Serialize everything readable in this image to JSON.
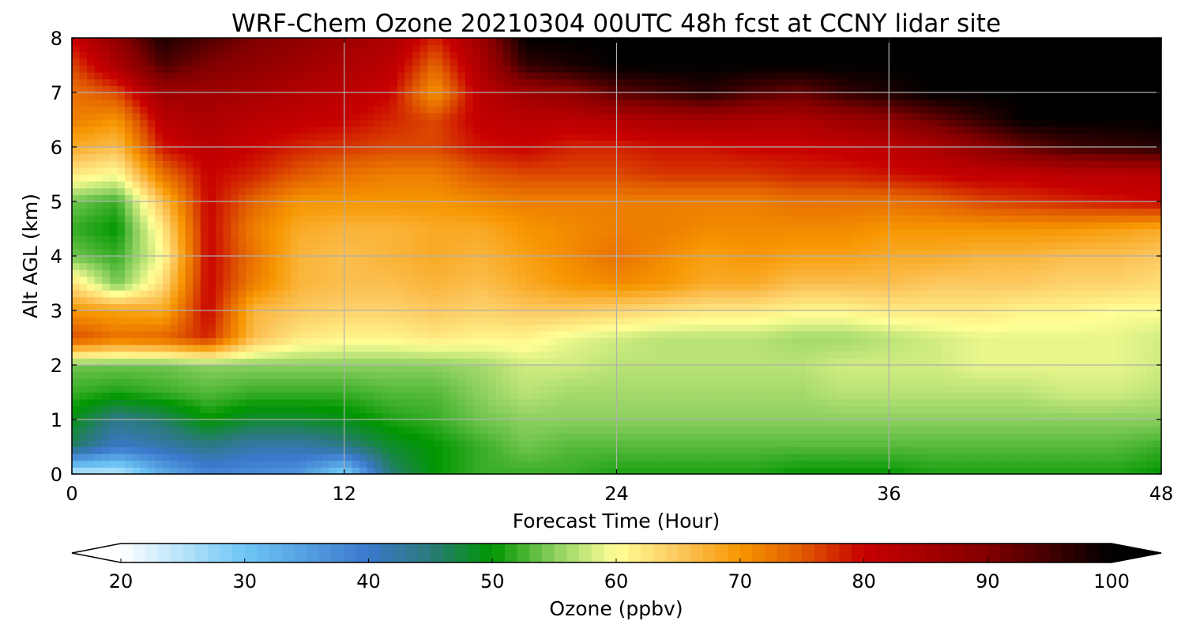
{
  "chart_data": {
    "type": "heatmap",
    "title": "WRF-Chem Ozone  20210304 00UTC 48h fcst at CCNY lidar site",
    "xlabel": "Forecast Time (Hour)",
    "ylabel": "Alt AGL (km)",
    "xlim": [
      0,
      48
    ],
    "ylim": [
      0,
      8
    ],
    "xticks": [
      0,
      12,
      24,
      36,
      48
    ],
    "yticks": [
      0,
      1,
      2,
      3,
      4,
      5,
      6,
      7,
      8
    ],
    "grid": true,
    "colorbar": {
      "label": "Ozone  (ppbv)",
      "range": [
        20,
        100
      ],
      "ticks": [
        20,
        30,
        40,
        50,
        60,
        70,
        80,
        90,
        100
      ],
      "extend": "both",
      "stops": [
        {
          "v": 20,
          "color": "#ffffff"
        },
        {
          "v": 30,
          "color": "#6ec6f5"
        },
        {
          "v": 40,
          "color": "#3a78cc"
        },
        {
          "v": 45,
          "color": "#2a7a7a"
        },
        {
          "v": 50,
          "color": "#009600"
        },
        {
          "v": 55,
          "color": "#8cd060"
        },
        {
          "v": 60,
          "color": "#ffff96"
        },
        {
          "v": 65,
          "color": "#fcc860"
        },
        {
          "v": 70,
          "color": "#f79600"
        },
        {
          "v": 75,
          "color": "#e05a00"
        },
        {
          "v": 80,
          "color": "#c80000"
        },
        {
          "v": 90,
          "color": "#820000"
        },
        {
          "v": 100,
          "color": "#000000"
        }
      ]
    },
    "times": [
      0,
      2,
      4,
      6,
      8,
      10,
      12,
      14,
      16,
      18,
      20,
      22,
      24,
      26,
      28,
      30,
      32,
      34,
      36,
      38,
      40,
      42,
      44,
      46,
      48
    ],
    "altitudes": [
      0,
      0.5,
      1,
      1.5,
      2,
      2.5,
      3,
      3.5,
      4,
      4.5,
      5,
      5.5,
      6,
      6.5,
      7,
      7.5,
      8
    ],
    "ozone": [
      [
        24,
        24,
        33,
        38,
        37,
        36,
        28,
        45,
        50,
        52,
        52,
        52,
        51,
        51,
        51,
        51,
        50,
        50,
        50,
        51,
        51,
        51,
        51,
        51,
        50
      ],
      [
        46,
        40,
        42,
        44,
        42,
        42,
        44,
        48,
        50,
        52,
        54,
        53,
        53,
        53,
        53,
        53,
        53,
        53,
        53,
        53,
        53,
        53,
        53,
        53,
        52
      ],
      [
        49,
        44,
        46,
        50,
        48,
        48,
        49,
        51,
        52,
        54,
        55,
        55,
        55,
        55,
        55,
        55,
        55,
        55,
        55,
        55,
        55,
        55,
        55,
        55,
        55
      ],
      [
        52,
        51,
        52,
        53,
        52,
        52,
        52,
        53,
        53,
        55,
        57,
        56,
        56,
        56,
        56,
        56,
        56,
        57,
        57,
        57,
        57,
        57,
        58,
        58,
        57
      ],
      [
        54,
        54,
        54,
        55,
        55,
        55,
        55,
        55,
        55,
        56,
        58,
        58,
        57,
        57,
        57,
        57,
        57,
        58,
        58,
        58,
        59,
        59,
        59,
        59,
        58
      ],
      [
        76,
        73,
        74,
        78,
        66,
        62,
        61,
        61,
        62,
        61,
        61,
        59,
        58,
        57,
        57,
        57,
        56,
        56,
        57,
        58,
        59,
        59,
        59,
        59,
        58
      ],
      [
        70,
        69,
        68,
        80,
        67,
        65,
        64,
        64,
        65,
        64,
        65,
        65,
        64,
        63,
        62,
        62,
        61,
        61,
        62,
        62,
        62,
        61,
        61,
        60,
        60
      ],
      [
        63,
        54,
        63,
        80,
        72,
        67,
        66,
        66,
        67,
        66,
        68,
        70,
        71,
        70,
        68,
        68,
        66,
        66,
        66,
        65,
        65,
        65,
        64,
        64,
        63
      ],
      [
        54,
        52,
        60,
        80,
        73,
        67,
        66,
        67,
        68,
        67,
        69,
        71,
        73,
        71,
        69,
        70,
        69,
        69,
        68,
        68,
        67,
        67,
        66,
        66,
        65
      ],
      [
        52,
        50,
        62,
        80,
        72,
        68,
        67,
        67,
        68,
        68,
        70,
        71,
        72,
        72,
        71,
        71,
        71,
        71,
        70,
        70,
        70,
        70,
        70,
        69,
        68
      ],
      [
        54,
        52,
        66,
        80,
        74,
        70,
        70,
        70,
        70,
        71,
        72,
        72,
        72,
        72,
        72,
        72,
        73,
        73,
        73,
        74,
        76,
        77,
        78,
        79,
        80
      ],
      [
        62,
        60,
        73,
        80,
        78,
        75,
        73,
        72,
        72,
        75,
        76,
        76,
        76,
        77,
        77,
        77,
        78,
        78,
        79,
        80,
        81,
        81,
        82,
        82,
        82
      ],
      [
        68,
        66,
        79,
        82,
        80,
        78,
        77,
        76,
        76,
        79,
        80,
        78,
        78,
        79,
        79,
        80,
        80,
        81,
        82,
        84,
        88,
        92,
        95,
        96,
        97
      ],
      [
        72,
        70,
        82,
        84,
        82,
        81,
        80,
        78,
        76,
        81,
        82,
        82,
        83,
        84,
        85,
        84,
        84,
        86,
        88,
        92,
        96,
        100,
        100,
        100,
        100
      ],
      [
        73,
        76,
        86,
        86,
        85,
        83,
        82,
        80,
        70,
        82,
        86,
        88,
        93,
        95,
        97,
        94,
        92,
        96,
        98,
        100,
        100,
        100,
        100,
        100,
        100
      ],
      [
        76,
        84,
        94,
        90,
        88,
        86,
        84,
        82,
        74,
        84,
        96,
        98,
        100,
        100,
        100,
        100,
        100,
        100,
        100,
        100,
        100,
        100,
        100,
        100,
        100
      ],
      [
        80,
        88,
        98,
        94,
        90,
        88,
        86,
        84,
        78,
        86,
        100,
        100,
        100,
        100,
        100,
        100,
        100,
        100,
        100,
        100,
        100,
        100,
        100,
        100,
        100
      ]
    ]
  }
}
